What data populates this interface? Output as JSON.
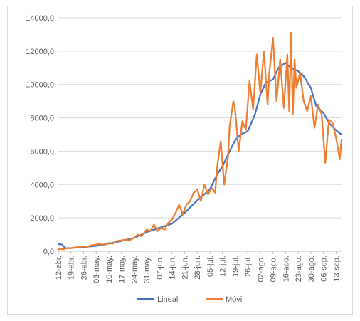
{
  "chart_data": {
    "type": "line",
    "title": "",
    "xlabel": "",
    "ylabel": "",
    "ylim": [
      0,
      14000
    ],
    "yticks": [
      "0,0",
      "2000,0",
      "4000,0",
      "6000,0",
      "8000,0",
      "10000,0",
      "12000,0",
      "14000,0"
    ],
    "ytick_values": [
      0,
      2000,
      4000,
      6000,
      8000,
      10000,
      12000,
      14000
    ],
    "grid": "horizontal",
    "legend_position": "bottom",
    "x_start": "2020-04-12",
    "x_end": "2020-09-16",
    "xticks": [
      "12-abr.",
      "19-abr.",
      "26-abr.",
      "03-may.",
      "10-may.",
      "17-may.",
      "24-may.",
      "31-may.",
      "07-jun.",
      "14-jun.",
      "21-jun.",
      "28-jun.",
      "05-jul.",
      "12-jul.",
      "19-jul.",
      "26-jul.",
      "02-ago.",
      "09-ago.",
      "16-ago.",
      "23-ago.",
      "30-ago.",
      "06-sep.",
      "13-sep."
    ],
    "xtick_dates": [
      "2020-04-12",
      "2020-04-19",
      "2020-04-26",
      "2020-05-03",
      "2020-05-10",
      "2020-05-17",
      "2020-05-24",
      "2020-05-31",
      "2020-06-07",
      "2020-06-14",
      "2020-06-21",
      "2020-06-28",
      "2020-07-05",
      "2020-07-12",
      "2020-07-19",
      "2020-07-26",
      "2020-08-02",
      "2020-08-09",
      "2020-08-16",
      "2020-08-23",
      "2020-08-30",
      "2020-09-06",
      "2020-09-13"
    ],
    "series": [
      {
        "name": "Lineal",
        "color": "#4472c4",
        "x": [
          "2020-04-12",
          "2020-04-14",
          "2020-04-16",
          "2020-04-19",
          "2020-04-26",
          "2020-05-03",
          "2020-05-10",
          "2020-05-17",
          "2020-05-24",
          "2020-05-31",
          "2020-06-07",
          "2020-06-14",
          "2020-06-21",
          "2020-06-28",
          "2020-07-05",
          "2020-07-09",
          "2020-07-12",
          "2020-07-16",
          "2020-07-19",
          "2020-07-22",
          "2020-07-26",
          "2020-07-30",
          "2020-08-02",
          "2020-08-05",
          "2020-08-09",
          "2020-08-12",
          "2020-08-16",
          "2020-08-19",
          "2020-08-23",
          "2020-08-26",
          "2020-08-30",
          "2020-09-02",
          "2020-09-06",
          "2020-09-09",
          "2020-09-13",
          "2020-09-16"
        ],
        "values": [
          430,
          400,
          180,
          190,
          250,
          320,
          460,
          620,
          800,
          1150,
          1400,
          1650,
          2300,
          3050,
          3700,
          4600,
          5100,
          6000,
          6650,
          7000,
          7200,
          8200,
          9400,
          10100,
          10300,
          11000,
          11300,
          11000,
          10800,
          10500,
          9800,
          8700,
          8300,
          7700,
          7250,
          7000
        ]
      },
      {
        "name": "Móvil",
        "color": "#ed7d31",
        "x": [
          "2020-04-12",
          "2020-04-13",
          "2020-04-15",
          "2020-04-17",
          "2020-04-19",
          "2020-04-21",
          "2020-04-23",
          "2020-04-26",
          "2020-04-28",
          "2020-04-30",
          "2020-05-03",
          "2020-05-05",
          "2020-05-07",
          "2020-05-10",
          "2020-05-12",
          "2020-05-14",
          "2020-05-17",
          "2020-05-19",
          "2020-05-21",
          "2020-05-24",
          "2020-05-26",
          "2020-05-28",
          "2020-05-31",
          "2020-06-02",
          "2020-06-04",
          "2020-06-06",
          "2020-06-08",
          "2020-06-10",
          "2020-06-12",
          "2020-06-14",
          "2020-06-16",
          "2020-06-18",
          "2020-06-20",
          "2020-06-22",
          "2020-06-24",
          "2020-06-26",
          "2020-06-28",
          "2020-06-30",
          "2020-07-02",
          "2020-07-04",
          "2020-07-06",
          "2020-07-08",
          "2020-07-09",
          "2020-07-11",
          "2020-07-13",
          "2020-07-15",
          "2020-07-16",
          "2020-07-18",
          "2020-07-19",
          "2020-07-21",
          "2020-07-23",
          "2020-07-25",
          "2020-07-27",
          "2020-07-29",
          "2020-07-31",
          "2020-08-02",
          "2020-08-04",
          "2020-08-06",
          "2020-08-07",
          "2020-08-09",
          "2020-08-11",
          "2020-08-13",
          "2020-08-15",
          "2020-08-17",
          "2020-08-18",
          "2020-08-19",
          "2020-08-20",
          "2020-08-21",
          "2020-08-22",
          "2020-08-24",
          "2020-08-26",
          "2020-08-28",
          "2020-08-30",
          "2020-09-01",
          "2020-09-03",
          "2020-09-05",
          "2020-09-07",
          "2020-09-09",
          "2020-09-11",
          "2020-09-13",
          "2020-09-15",
          "2020-09-16"
        ],
        "values": [
          100,
          150,
          120,
          200,
          180,
          220,
          250,
          300,
          250,
          350,
          400,
          450,
          350,
          500,
          450,
          600,
          650,
          700,
          650,
          800,
          1000,
          900,
          1300,
          1200,
          1600,
          1200,
          1400,
          1300,
          1700,
          1900,
          2300,
          2800,
          2200,
          2800,
          3000,
          3500,
          3700,
          3000,
          4000,
          3400,
          3800,
          3500,
          5000,
          6600,
          4000,
          5600,
          7500,
          9000,
          8500,
          6000,
          7800,
          7300,
          10200,
          8500,
          11800,
          9500,
          12000,
          8800,
          10700,
          12800,
          9000,
          11500,
          8600,
          11800,
          8400,
          13100,
          8200,
          11500,
          9800,
          10700,
          9000,
          8400,
          9300,
          7400,
          8800,
          8200,
          5300,
          7900,
          7700,
          6800,
          5500,
          6700
        ]
      }
    ]
  }
}
